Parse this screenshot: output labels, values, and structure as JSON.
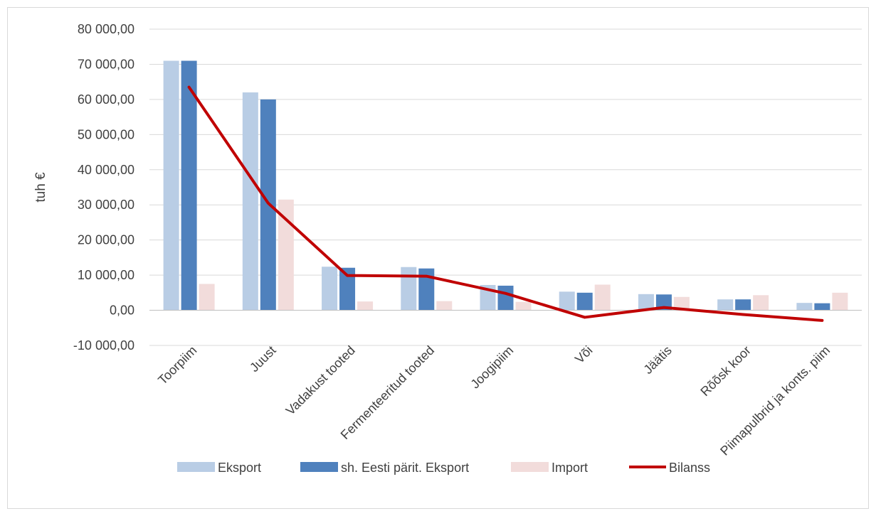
{
  "chart_data": {
    "type": "bar",
    "title": "",
    "ylabel": "tuh €",
    "xlabel": "",
    "ylim": [
      -10000,
      80000
    ],
    "ytick_step": 10000,
    "ytick_labels": [
      "-10 000,00",
      "0,00",
      "10 000,00",
      "20 000,00",
      "30 000,00",
      "40 000,00",
      "50 000,00",
      "60 000,00",
      "70 000,00",
      "80 000,00"
    ],
    "grid": true,
    "legend_position": "bottom",
    "categories": [
      "Toorpiim",
      "Juust",
      "Vadakust tooted",
      "Fermenteeritud tooted",
      "Joogipiim",
      "Või",
      "Jäätis",
      "Rõõsk koor",
      "Piimapulbrid ja konts. piim"
    ],
    "series": [
      {
        "name": "Eksport",
        "kind": "bar",
        "color": "#b9cde5",
        "values": [
          71000,
          62000,
          12400,
          12300,
          7200,
          5300,
          4600,
          3100,
          2100
        ]
      },
      {
        "name": "sh. Eesti pärit. Eksport",
        "kind": "bar",
        "color": "#4f81bd",
        "values": [
          71000,
          60000,
          12100,
          11900,
          7000,
          5000,
          4500,
          3100,
          2000
        ]
      },
      {
        "name": "Import",
        "kind": "bar",
        "color": "#f2dcdb",
        "values": [
          7500,
          31500,
          2500,
          2600,
          2400,
          7300,
          3800,
          4300,
          5000
        ]
      },
      {
        "name": "Bilanss",
        "kind": "line",
        "color": "#c00000",
        "values": [
          63500,
          30500,
          9900,
          9700,
          4800,
          -2000,
          800,
          -1200,
          -2900
        ]
      }
    ]
  }
}
